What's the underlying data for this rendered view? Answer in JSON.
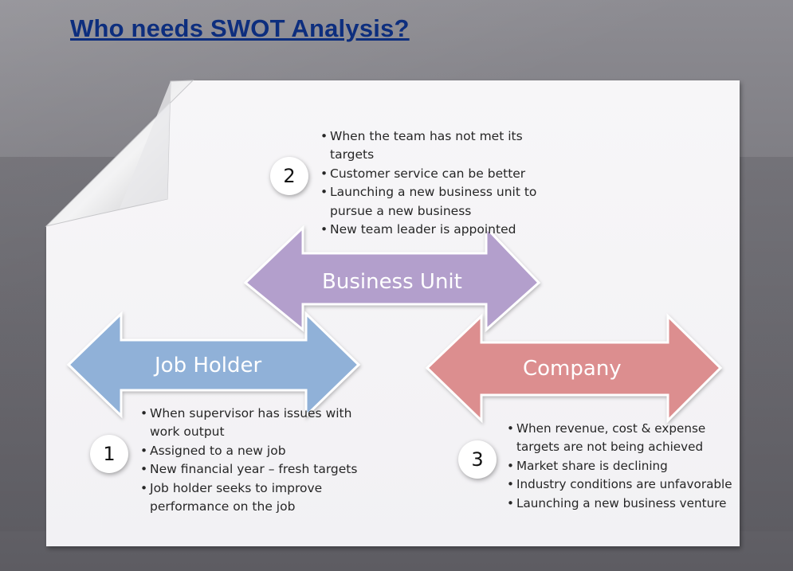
{
  "slide": {
    "title": "Who needs SWOT Analysis?"
  },
  "groups": [
    {
      "number": "2",
      "arrow_label": "Business Unit",
      "color": "#b39fcc",
      "bullets": [
        [
          "When the team has not met its",
          "targets"
        ],
        [
          "Customer service can be better"
        ],
        [
          "Launching a new business unit to",
          "pursue a  new business"
        ],
        [
          "New team leader is appointed"
        ]
      ]
    },
    {
      "number": "1",
      "arrow_label": "Job Holder",
      "color": "#90b1d8",
      "bullets": [
        [
          "When supervisor has issues with",
          "work output"
        ],
        [
          "Assigned to a new job"
        ],
        [
          "New financial year – fresh targets"
        ],
        [
          "Job holder seeks to improve",
          "performance on the job"
        ]
      ]
    },
    {
      "number": "3",
      "arrow_label": "Company",
      "color": "#dc8e8f",
      "bullets": [
        [
          "When revenue, cost & expense",
          "targets are not being  achieved"
        ],
        [
          "Market share is declining"
        ],
        [
          "Industry conditions are unfavorable"
        ],
        [
          "Launching a new business venture"
        ]
      ]
    }
  ]
}
